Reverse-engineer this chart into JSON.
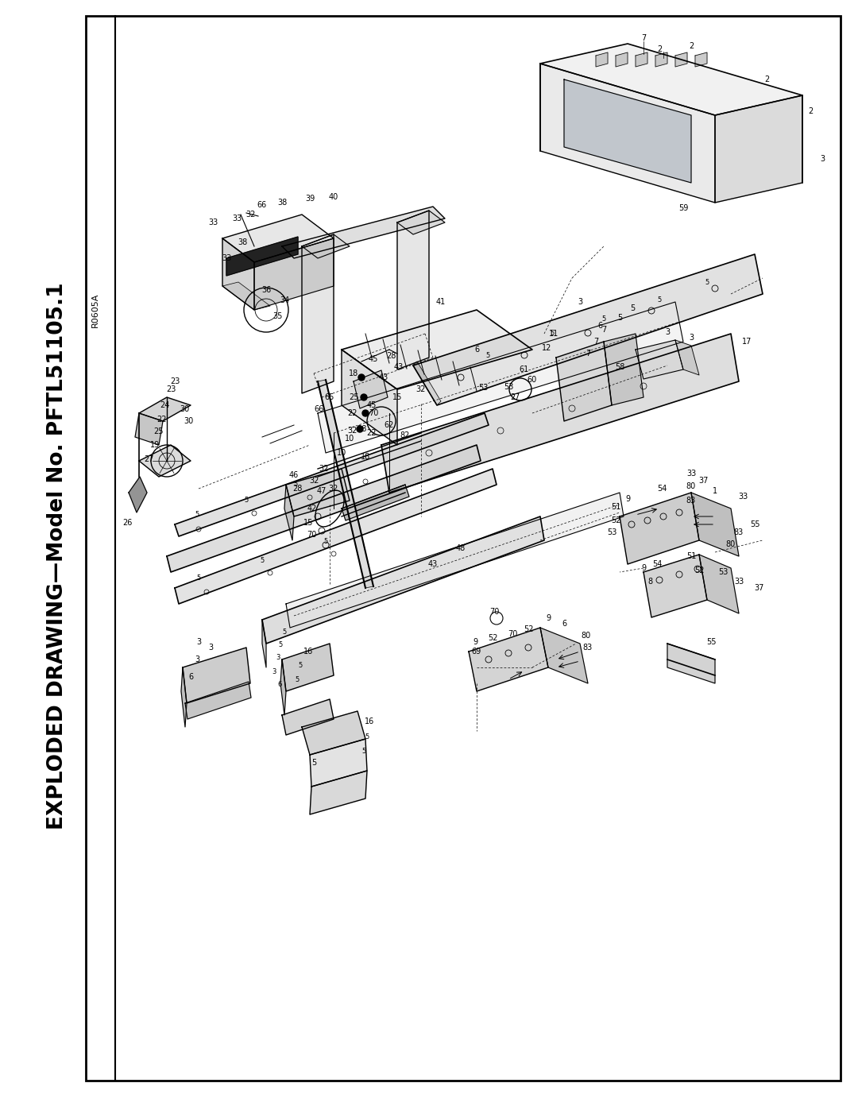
{
  "title": "EXPLODED DRAWING—Model No. PFTL51105.1",
  "ref_code": "R0605A",
  "bg": "#ffffff",
  "fg": "#000000",
  "fig_w": 10.8,
  "fig_h": 13.97,
  "dpi": 100
}
